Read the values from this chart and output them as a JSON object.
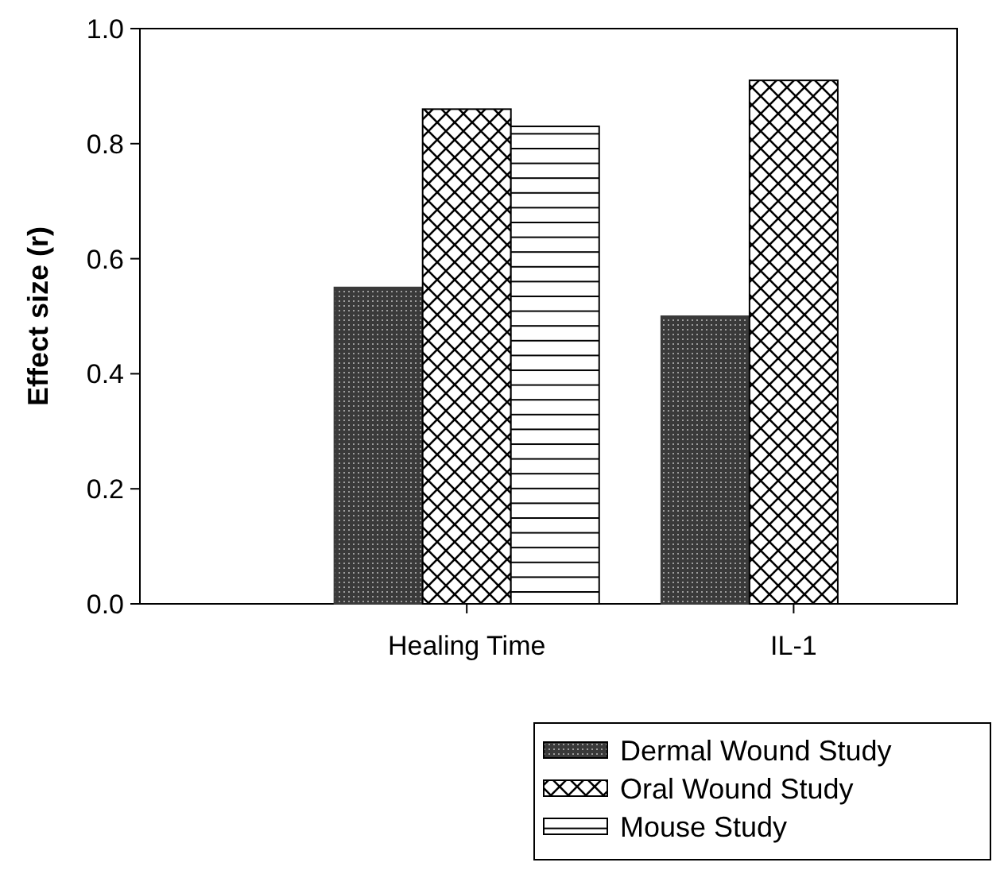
{
  "chart_data": {
    "type": "bar",
    "ylabel": "Effect size (r)",
    "categories": [
      "Healing Time",
      "IL-1"
    ],
    "series": [
      {
        "name": "Dermal Wound Study",
        "color": "#3a3a3a",
        "values": [
          0.55,
          0.5
        ]
      },
      {
        "name": "Oral Wound Study",
        "color": "#000000",
        "values": [
          0.86,
          0.91
        ]
      },
      {
        "name": "Mouse Study",
        "color": "#000000",
        "values": [
          0.83,
          null
        ]
      }
    ],
    "ylim": [
      0,
      1
    ],
    "yticks": [
      {
        "value": 0,
        "label": "0.0"
      },
      {
        "value": 0.2,
        "label": "0.2"
      },
      {
        "value": 0.4,
        "label": "0.4"
      },
      {
        "value": 0.6,
        "label": "0.6"
      },
      {
        "value": 0.8,
        "label": "0.8"
      },
      {
        "value": 1,
        "label": "1.0"
      }
    ],
    "grid": false,
    "legend": "bottom right"
  }
}
